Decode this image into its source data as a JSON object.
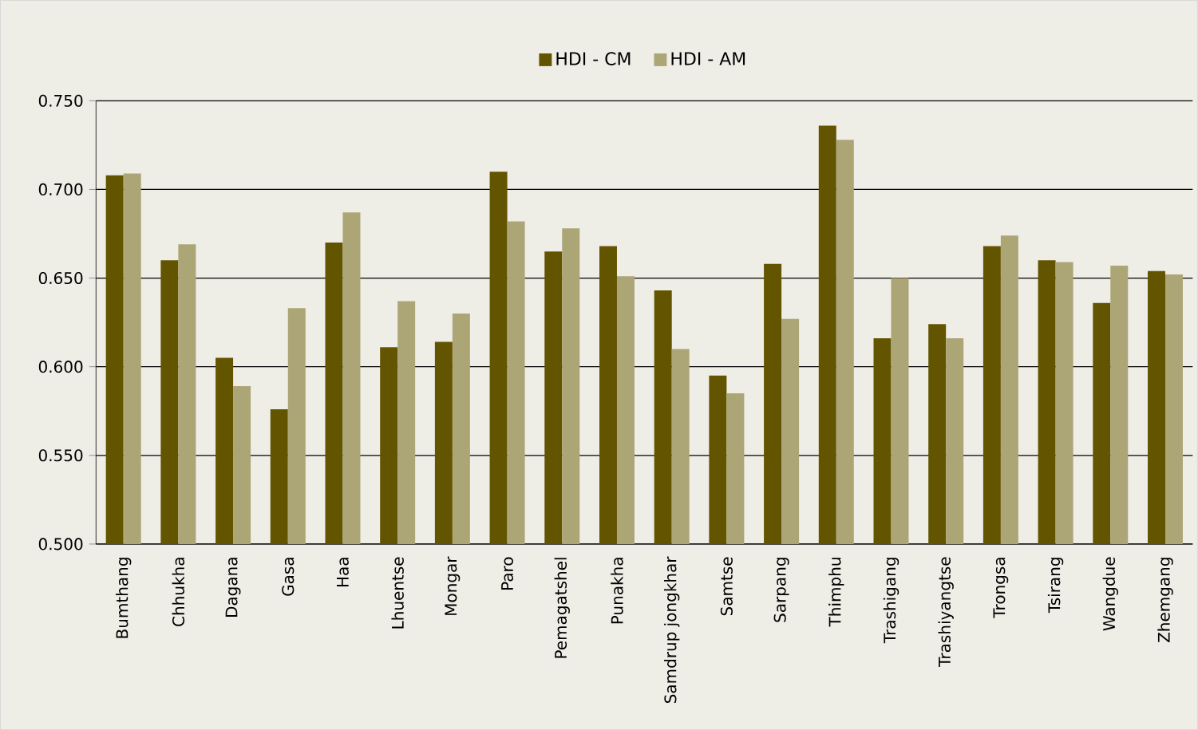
{
  "chart_data": {
    "type": "bar",
    "categories": [
      "Bumthang",
      "Chhukha",
      "Dagana",
      "Gasa",
      "Haa",
      "Lhuentse",
      "Mongar",
      "Paro",
      "Pemagatshel",
      "Punakha",
      "Samdrup jongkhar",
      "Samtse",
      "Sarpang",
      "Thimphu",
      "Trashigang",
      "Trashiyangtse",
      "Trongsa",
      "Tsirang",
      "Wangdue",
      "Zhemgang"
    ],
    "series": [
      {
        "name": "HDI - CM",
        "color": "#635400",
        "values": [
          0.708,
          0.66,
          0.605,
          0.576,
          0.67,
          0.611,
          0.614,
          0.71,
          0.665,
          0.668,
          0.643,
          0.595,
          0.658,
          0.736,
          0.616,
          0.624,
          0.668,
          0.66,
          0.636,
          0.654
        ]
      },
      {
        "name": "HDI - AM",
        "color": "#aca576",
        "values": [
          0.709,
          0.669,
          0.589,
          0.633,
          0.687,
          0.637,
          0.63,
          0.682,
          0.678,
          0.651,
          0.61,
          0.585,
          0.627,
          0.728,
          0.65,
          0.616,
          0.674,
          0.659,
          0.657,
          0.652
        ]
      }
    ],
    "ylim": [
      0.5,
      0.75
    ],
    "yticks": [
      {
        "value": 0.5,
        "label": "0.500"
      },
      {
        "value": 0.55,
        "label": "0.550"
      },
      {
        "value": 0.6,
        "label": "0.600"
      },
      {
        "value": 0.65,
        "label": "0.650"
      },
      {
        "value": 0.7,
        "label": "0.700"
      },
      {
        "value": 0.75,
        "label": "0.750"
      }
    ],
    "grid": "y",
    "legend": "top"
  }
}
